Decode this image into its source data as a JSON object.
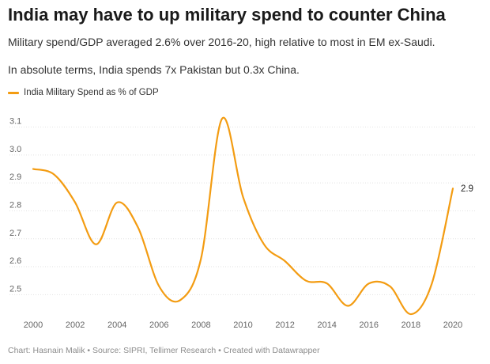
{
  "header": {
    "title": "India may have to up military spend to counter China",
    "subtitle_1": "Military spend/GDP averaged 2.6% over 2016-20, high relative to most in EM ex-Saudi.",
    "subtitle_2": "In absolute terms, India spends 7x Pakistan but 0.3x China."
  },
  "legend": {
    "label": "India Military Spend as % of GDP"
  },
  "footer": {
    "text": "Chart: Hasnain Malik • Source: SIPRI, Tellimer Research • Created with Datawrapper"
  },
  "colors": {
    "line": "#f39c12",
    "grid": "#e2e2e2",
    "tick_text": "#666666",
    "label_text": "#222222"
  },
  "chart_data": {
    "type": "line",
    "series": [
      {
        "name": "India Military Spend as % of GDP",
        "x": [
          2000,
          2001,
          2002,
          2003,
          2004,
          2005,
          2006,
          2007,
          2008,
          2009,
          2010,
          2011,
          2012,
          2013,
          2014,
          2015,
          2016,
          2017,
          2018,
          2019,
          2020
        ],
        "values": [
          2.95,
          2.93,
          2.83,
          2.68,
          2.83,
          2.74,
          2.53,
          2.48,
          2.63,
          3.13,
          2.85,
          2.68,
          2.62,
          2.55,
          2.54,
          2.46,
          2.54,
          2.53,
          2.43,
          2.54,
          2.88
        ]
      }
    ],
    "end_label": "2.9",
    "xlim": [
      2000,
      2020
    ],
    "ylim": [
      2.45,
      3.13
    ],
    "x_ticks": [
      2000,
      2002,
      2004,
      2006,
      2008,
      2010,
      2012,
      2014,
      2016,
      2018,
      2020
    ],
    "y_ticks": [
      2.5,
      2.6,
      2.7,
      2.8,
      2.9,
      3.0,
      3.1
    ],
    "x_tick_labels": [
      "2000",
      "2002",
      "2004",
      "2006",
      "2008",
      "2010",
      "2012",
      "2014",
      "2016",
      "2018",
      "2020"
    ],
    "y_tick_labels": [
      "2.5",
      "2.6",
      "2.7",
      "2.8",
      "2.9",
      "3.0",
      "3.1"
    ],
    "grid": true,
    "legend_position": "top-left"
  }
}
